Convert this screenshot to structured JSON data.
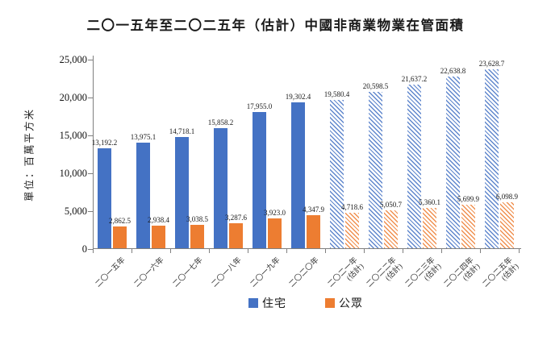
{
  "title": "二〇一五年至二〇二五年（估計）中國非商業物業在管面積",
  "colors": {
    "residential": "#4472C4",
    "public": "#ED7D31",
    "axis": "#7F7F7F",
    "background": "#FFFFFF"
  },
  "legend": {
    "items": [
      {
        "label": "住宅",
        "color": "#4472C4"
      },
      {
        "label": "公眾",
        "color": "#ED7D31"
      }
    ]
  },
  "chart_data": {
    "type": "bar",
    "title": "二〇一五年至二〇二五年（估計）中國非商業物業在管面積",
    "ylabel": "單位：百萬平方米",
    "xlabel": "",
    "ylim": [
      0,
      25000
    ],
    "ytick_step": 5000,
    "ytick_labels": [
      "0",
      "5,000",
      "10,000",
      "15,000",
      "20,000",
      "25,000"
    ],
    "grid": false,
    "legend_position": "bottom",
    "categories": [
      "二〇一五年",
      "二〇一六年",
      "二〇一七年",
      "二〇一八年",
      "二〇一九年",
      "二〇二〇年",
      "二〇二一年",
      "二〇二二年",
      "二〇二三年",
      "二〇二四年",
      "二〇二五年"
    ],
    "estimate_start_index": 6,
    "estimate_suffix": "(估計)",
    "estimate_style": "diagonal-hatch",
    "series": [
      {
        "name": "住宅",
        "color": "#4472C4",
        "values": [
          13192.2,
          13975.1,
          14718.1,
          15858.2,
          17955.0,
          19302.4,
          19580.4,
          20598.5,
          21637.2,
          22638.8,
          23628.7
        ]
      },
      {
        "name": "公眾",
        "color": "#ED7D31",
        "values": [
          2862.5,
          2938.4,
          3038.5,
          3287.6,
          3923.0,
          4347.9,
          4718.6,
          5050.7,
          5360.1,
          5699.9,
          6098.9
        ]
      }
    ]
  }
}
